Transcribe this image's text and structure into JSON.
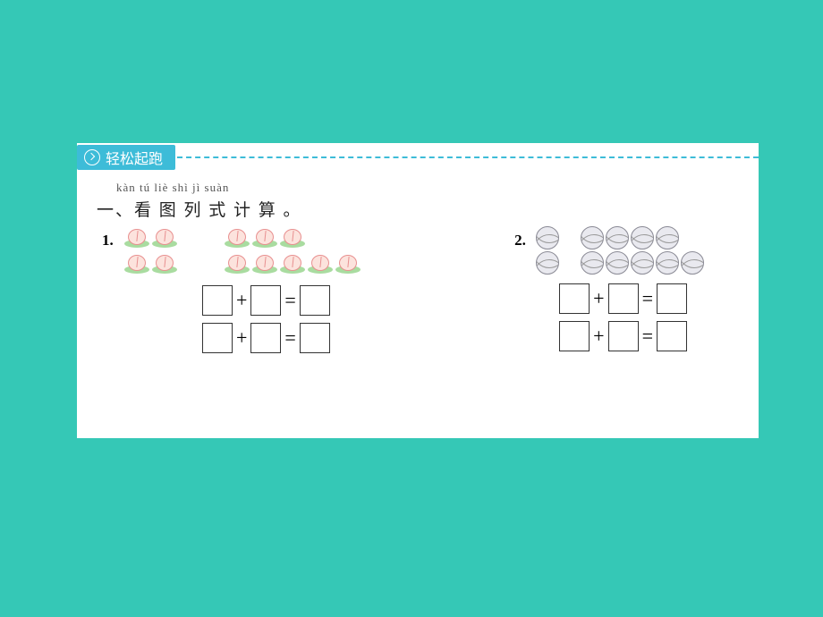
{
  "page": {
    "background_color": "#35c8b6",
    "worksheet_background": "#ffffff"
  },
  "header": {
    "badge_text": "轻松起跑",
    "badge_color": "#3dbcd8",
    "dash_color": "#3dbcd8"
  },
  "section": {
    "pinyin": "kàn  tú  liè  shì  jì  suàn",
    "title": "一、看 图 列 式 计 算 。"
  },
  "problems": [
    {
      "number": "1.",
      "icon_type": "peach",
      "colors": {
        "peach_fill": "#fce3dd",
        "peach_outline": "#e89090",
        "leaf_fill": "#a9dca0"
      },
      "rows": [
        {
          "groups": [
            2,
            3
          ],
          "gap": "sm"
        },
        {
          "groups": [
            2,
            5
          ],
          "gap": "sm"
        }
      ],
      "equations": [
        {
          "op": "+",
          "rel": "="
        },
        {
          "op": "+",
          "rel": "="
        }
      ]
    },
    {
      "number": "2.",
      "icon_type": "ball",
      "colors": {
        "ball_fill": "#e9e9ef",
        "ball_outline": "#8a8a95"
      },
      "rows": [
        {
          "groups": [
            1,
            4
          ],
          "gap": "xs"
        },
        {
          "groups": [
            1,
            5
          ],
          "gap": "xs"
        }
      ],
      "equations": [
        {
          "op": "+",
          "rel": "="
        },
        {
          "op": "+",
          "rel": "="
        }
      ]
    }
  ]
}
